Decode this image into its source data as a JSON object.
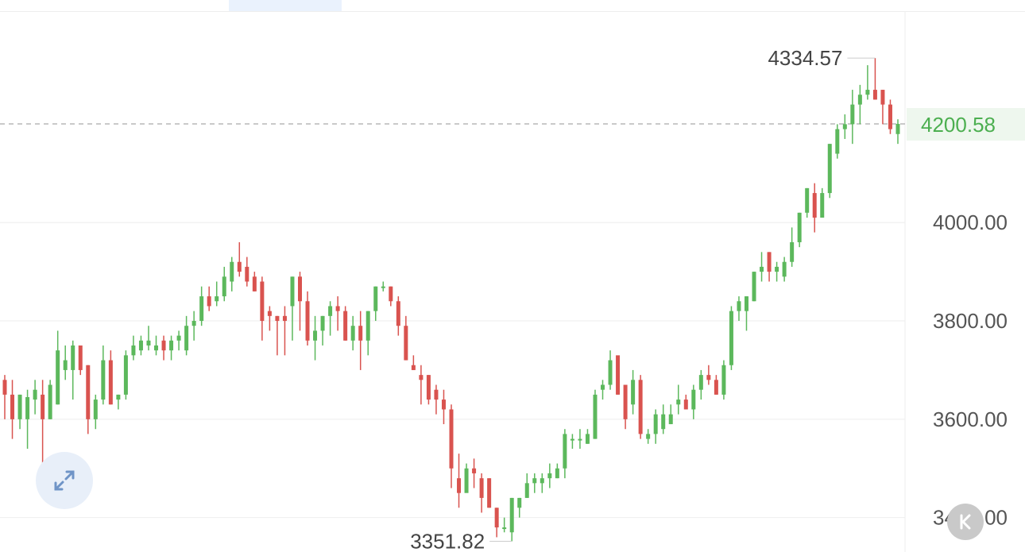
{
  "chart_data": {
    "type": "candlestick",
    "y_ticks": [
      "4000.00",
      "3800.00",
      "3600.00",
      "3400.00"
    ],
    "y_tick_values": [
      4000,
      3800,
      3600,
      3400
    ],
    "ylim": [
      3330,
      4430
    ],
    "current_price": "4200.58",
    "current_price_value": 4200.58,
    "high_label": "4334.57",
    "high_value": 4334.57,
    "low_label": "3351.82",
    "low_value": 3351.82,
    "grid": true,
    "colors": {
      "up": "#5cb85c",
      "down": "#d9534f",
      "grid": "#eeeeee",
      "dashed": "#aaaaaa",
      "axis_text": "#555555",
      "current": "#4caf50"
    },
    "candles": [
      {
        "o": 3680,
        "h": 3690,
        "l": 3600,
        "c": 3650
      },
      {
        "o": 3650,
        "h": 3680,
        "l": 3560,
        "c": 3600
      },
      {
        "o": 3600,
        "h": 3650,
        "l": 3580,
        "c": 3650
      },
      {
        "o": 3600,
        "h": 3660,
        "l": 3540,
        "c": 3645
      },
      {
        "o": 3640,
        "h": 3680,
        "l": 3610,
        "c": 3660
      },
      {
        "o": 3650,
        "h": 3680,
        "l": 3510,
        "c": 3600
      },
      {
        "o": 3600,
        "h": 3680,
        "l": 3600,
        "c": 3670
      },
      {
        "o": 3630,
        "h": 3780,
        "l": 3630,
        "c": 3740
      },
      {
        "o": 3700,
        "h": 3750,
        "l": 3680,
        "c": 3720
      },
      {
        "o": 3700,
        "h": 3760,
        "l": 3640,
        "c": 3750
      },
      {
        "o": 3750,
        "h": 3740,
        "l": 3690,
        "c": 3700
      },
      {
        "o": 3710,
        "h": 3710,
        "l": 3570,
        "c": 3600
      },
      {
        "o": 3600,
        "h": 3650,
        "l": 3580,
        "c": 3640
      },
      {
        "o": 3640,
        "h": 3750,
        "l": 3630,
        "c": 3720
      },
      {
        "o": 3720,
        "h": 3740,
        "l": 3630,
        "c": 3630
      },
      {
        "o": 3640,
        "h": 3650,
        "l": 3620,
        "c": 3650
      },
      {
        "o": 3650,
        "h": 3740,
        "l": 3640,
        "c": 3730
      },
      {
        "o": 3730,
        "h": 3770,
        "l": 3720,
        "c": 3750
      },
      {
        "o": 3740,
        "h": 3770,
        "l": 3730,
        "c": 3760
      },
      {
        "o": 3750,
        "h": 3790,
        "l": 3740,
        "c": 3760
      },
      {
        "o": 3740,
        "h": 3770,
        "l": 3730,
        "c": 3750
      },
      {
        "o": 3760,
        "h": 3770,
        "l": 3720,
        "c": 3740
      },
      {
        "o": 3740,
        "h": 3770,
        "l": 3720,
        "c": 3760
      },
      {
        "o": 3760,
        "h": 3780,
        "l": 3740,
        "c": 3770
      },
      {
        "o": 3740,
        "h": 3810,
        "l": 3730,
        "c": 3790
      },
      {
        "o": 3790,
        "h": 3820,
        "l": 3760,
        "c": 3800
      },
      {
        "o": 3800,
        "h": 3870,
        "l": 3790,
        "c": 3850
      },
      {
        "o": 3850,
        "h": 3870,
        "l": 3820,
        "c": 3830
      },
      {
        "o": 3840,
        "h": 3880,
        "l": 3830,
        "c": 3850
      },
      {
        "o": 3850,
        "h": 3910,
        "l": 3840,
        "c": 3890
      },
      {
        "o": 3880,
        "h": 3930,
        "l": 3860,
        "c": 3920
      },
      {
        "o": 3920,
        "h": 3960,
        "l": 3890,
        "c": 3900
      },
      {
        "o": 3910,
        "h": 3930,
        "l": 3870,
        "c": 3880
      },
      {
        "o": 3890,
        "h": 3900,
        "l": 3860,
        "c": 3860
      },
      {
        "o": 3880,
        "h": 3890,
        "l": 3760,
        "c": 3800
      },
      {
        "o": 3820,
        "h": 3830,
        "l": 3780,
        "c": 3810
      },
      {
        "o": 3810,
        "h": 3810,
        "l": 3730,
        "c": 3800
      },
      {
        "o": 3810,
        "h": 3830,
        "l": 3730,
        "c": 3800
      },
      {
        "o": 3830,
        "h": 3890,
        "l": 3760,
        "c": 3890
      },
      {
        "o": 3890,
        "h": 3900,
        "l": 3780,
        "c": 3840
      },
      {
        "o": 3840,
        "h": 3860,
        "l": 3750,
        "c": 3760
      },
      {
        "o": 3760,
        "h": 3810,
        "l": 3720,
        "c": 3780
      },
      {
        "o": 3780,
        "h": 3810,
        "l": 3750,
        "c": 3810
      },
      {
        "o": 3810,
        "h": 3840,
        "l": 3770,
        "c": 3830
      },
      {
        "o": 3830,
        "h": 3850,
        "l": 3780,
        "c": 3820
      },
      {
        "o": 3820,
        "h": 3830,
        "l": 3760,
        "c": 3760
      },
      {
        "o": 3760,
        "h": 3810,
        "l": 3740,
        "c": 3790
      },
      {
        "o": 3790,
        "h": 3820,
        "l": 3700,
        "c": 3760
      },
      {
        "o": 3760,
        "h": 3820,
        "l": 3730,
        "c": 3820
      },
      {
        "o": 3820,
        "h": 3870,
        "l": 3800,
        "c": 3870
      },
      {
        "o": 3870,
        "h": 3880,
        "l": 3860,
        "c": 3870
      },
      {
        "o": 3870,
        "h": 3870,
        "l": 3830,
        "c": 3840
      },
      {
        "o": 3840,
        "h": 3850,
        "l": 3770,
        "c": 3790
      },
      {
        "o": 3790,
        "h": 3810,
        "l": 3720,
        "c": 3720
      },
      {
        "o": 3710,
        "h": 3730,
        "l": 3700,
        "c": 3700
      },
      {
        "o": 3690,
        "h": 3710,
        "l": 3630,
        "c": 3680
      },
      {
        "o": 3690,
        "h": 3690,
        "l": 3630,
        "c": 3640
      },
      {
        "o": 3660,
        "h": 3670,
        "l": 3610,
        "c": 3640
      },
      {
        "o": 3640,
        "h": 3660,
        "l": 3590,
        "c": 3620
      },
      {
        "o": 3620,
        "h": 3630,
        "l": 3460,
        "c": 3500
      },
      {
        "o": 3480,
        "h": 3530,
        "l": 3420,
        "c": 3450
      },
      {
        "o": 3450,
        "h": 3510,
        "l": 3460,
        "c": 3500
      },
      {
        "o": 3500,
        "h": 3520,
        "l": 3460,
        "c": 3490
      },
      {
        "o": 3480,
        "h": 3490,
        "l": 3410,
        "c": 3440
      },
      {
        "o": 3480,
        "h": 3480,
        "l": 3420,
        "c": 3420
      },
      {
        "o": 3420,
        "h": 3420,
        "l": 3360,
        "c": 3380
      },
      {
        "o": 3380,
        "h": 3400,
        "l": 3370,
        "c": 3380
      },
      {
        "o": 3370,
        "h": 3440,
        "l": 3351.82,
        "c": 3440
      },
      {
        "o": 3420,
        "h": 3440,
        "l": 3400,
        "c": 3440
      },
      {
        "o": 3440,
        "h": 3490,
        "l": 3440,
        "c": 3470
      },
      {
        "o": 3470,
        "h": 3490,
        "l": 3450,
        "c": 3480
      },
      {
        "o": 3470,
        "h": 3490,
        "l": 3450,
        "c": 3480
      },
      {
        "o": 3480,
        "h": 3510,
        "l": 3460,
        "c": 3490
      },
      {
        "o": 3480,
        "h": 3510,
        "l": 3480,
        "c": 3500
      },
      {
        "o": 3500,
        "h": 3580,
        "l": 3480,
        "c": 3570
      },
      {
        "o": 3560,
        "h": 3570,
        "l": 3540,
        "c": 3560
      },
      {
        "o": 3560,
        "h": 3580,
        "l": 3540,
        "c": 3560
      },
      {
        "o": 3550,
        "h": 3580,
        "l": 3550,
        "c": 3570
      },
      {
        "o": 3560,
        "h": 3660,
        "l": 3560,
        "c": 3650
      },
      {
        "o": 3660,
        "h": 3680,
        "l": 3640,
        "c": 3670
      },
      {
        "o": 3670,
        "h": 3740,
        "l": 3660,
        "c": 3720
      },
      {
        "o": 3730,
        "h": 3720,
        "l": 3650,
        "c": 3650
      },
      {
        "o": 3670,
        "h": 3670,
        "l": 3580,
        "c": 3600
      },
      {
        "o": 3630,
        "h": 3700,
        "l": 3610,
        "c": 3680
      },
      {
        "o": 3680,
        "h": 3690,
        "l": 3560,
        "c": 3570
      },
      {
        "o": 3560,
        "h": 3580,
        "l": 3550,
        "c": 3570
      },
      {
        "o": 3570,
        "h": 3620,
        "l": 3550,
        "c": 3610
      },
      {
        "o": 3580,
        "h": 3630,
        "l": 3570,
        "c": 3610
      },
      {
        "o": 3590,
        "h": 3630,
        "l": 3590,
        "c": 3610
      },
      {
        "o": 3630,
        "h": 3670,
        "l": 3610,
        "c": 3640
      },
      {
        "o": 3640,
        "h": 3650,
        "l": 3620,
        "c": 3620
      },
      {
        "o": 3620,
        "h": 3670,
        "l": 3600,
        "c": 3660
      },
      {
        "o": 3660,
        "h": 3700,
        "l": 3640,
        "c": 3690
      },
      {
        "o": 3690,
        "h": 3710,
        "l": 3670,
        "c": 3680
      },
      {
        "o": 3680,
        "h": 3690,
        "l": 3650,
        "c": 3650
      },
      {
        "o": 3650,
        "h": 3720,
        "l": 3640,
        "c": 3710
      },
      {
        "o": 3710,
        "h": 3830,
        "l": 3700,
        "c": 3820
      },
      {
        "o": 3820,
        "h": 3850,
        "l": 3800,
        "c": 3840
      },
      {
        "o": 3820,
        "h": 3850,
        "l": 3780,
        "c": 3850
      },
      {
        "o": 3840,
        "h": 3900,
        "l": 3840,
        "c": 3900
      },
      {
        "o": 3900,
        "h": 3940,
        "l": 3880,
        "c": 3910
      },
      {
        "o": 3940,
        "h": 3940,
        "l": 3880,
        "c": 3900
      },
      {
        "o": 3900,
        "h": 3920,
        "l": 3880,
        "c": 3910
      },
      {
        "o": 3890,
        "h": 3930,
        "l": 3880,
        "c": 3920
      },
      {
        "o": 3920,
        "h": 3990,
        "l": 3910,
        "c": 3960
      },
      {
        "o": 3960,
        "h": 4020,
        "l": 3950,
        "c": 4020
      },
      {
        "o": 4020,
        "h": 4070,
        "l": 4010,
        "c": 4070
      },
      {
        "o": 4060,
        "h": 4080,
        "l": 3980,
        "c": 4010
      },
      {
        "o": 4010,
        "h": 4070,
        "l": 4010,
        "c": 4060
      },
      {
        "o": 4060,
        "h": 4160,
        "l": 4050,
        "c": 4160
      },
      {
        "o": 4140,
        "h": 4200,
        "l": 4130,
        "c": 4190
      },
      {
        "o": 4190,
        "h": 4220,
        "l": 4170,
        "c": 4200
      },
      {
        "o": 4200,
        "h": 4270,
        "l": 4160,
        "c": 4240
      },
      {
        "o": 4240,
        "h": 4280,
        "l": 4200,
        "c": 4260
      },
      {
        "o": 4260,
        "h": 4320,
        "l": 4250,
        "c": 4270
      },
      {
        "o": 4270,
        "h": 4334.57,
        "l": 4250,
        "c": 4250
      },
      {
        "o": 4270,
        "h": 4270,
        "l": 4200,
        "c": 4240
      },
      {
        "o": 4240,
        "h": 4250,
        "l": 4180,
        "c": 4190
      },
      {
        "o": 4180,
        "h": 4210,
        "l": 4160,
        "c": 4200.58
      }
    ]
  }
}
